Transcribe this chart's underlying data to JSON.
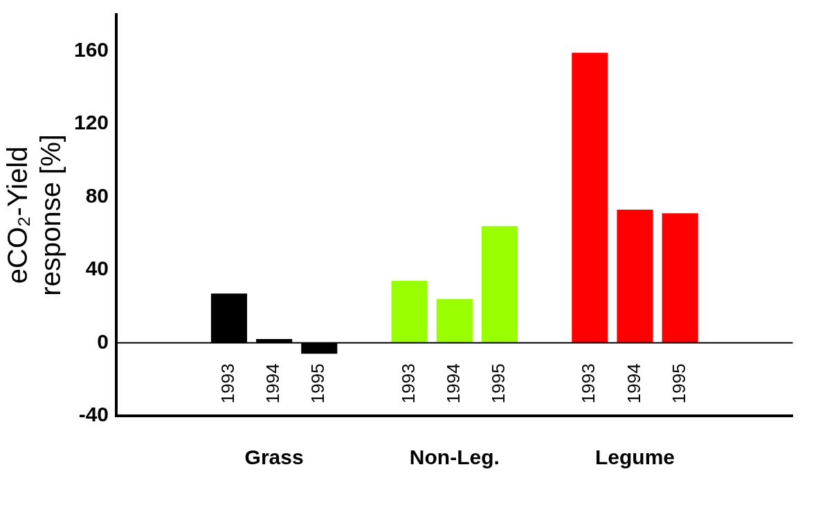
{
  "chart_data": {
    "type": "bar",
    "ylabel": "eCO₂-Yield response [%]",
    "categories": [
      null,
      null,
      "1993",
      "1994",
      "1995",
      null,
      "1993",
      "1994",
      "1995",
      null,
      "1993",
      "1994",
      "1995",
      null,
      null
    ],
    "series": [
      {
        "color": "#000000",
        "values": [
          null,
          null,
          27,
          2,
          -6,
          null,
          null,
          null,
          null,
          null,
          null,
          null,
          null,
          null,
          null
        ]
      },
      {
        "color": "#99ff00",
        "values": [
          null,
          null,
          null,
          null,
          null,
          null,
          34,
          24,
          64,
          null,
          null,
          null,
          null,
          null,
          null
        ]
      },
      {
        "color": "#ff0000",
        "values": [
          null,
          null,
          null,
          null,
          null,
          null,
          null,
          null,
          null,
          null,
          159,
          73,
          71,
          null,
          null
        ]
      }
    ],
    "annotations": [
      "Grass",
      "Non-Leg.",
      "Legume"
    ],
    "ref_lines": [
      {
        "axis": "y",
        "value": 0,
        "color": "#000000",
        "line_style": "solid"
      }
    ],
    "ylim": [
      -40,
      180
    ],
    "yticks": [
      -40,
      0,
      40,
      80,
      120,
      160
    ],
    "grid": false,
    "legend": false
  }
}
